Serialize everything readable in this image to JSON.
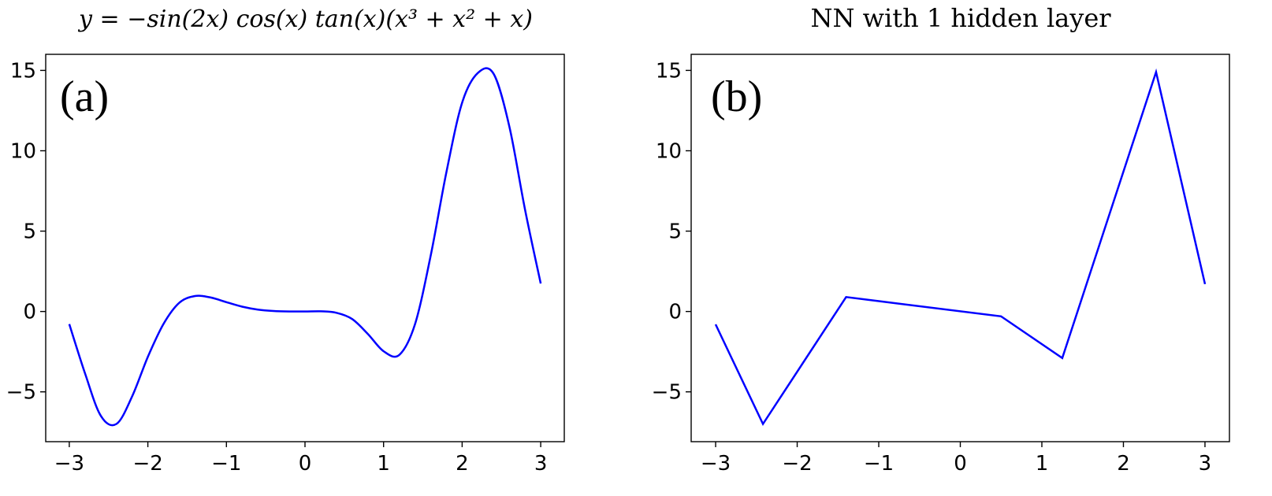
{
  "chart_data": [
    {
      "type": "line",
      "title": "y = −sin(2x) cos(x) tan(x)(x³ + x² + x)",
      "panel_label": "(a)",
      "xlim": [
        -3.3,
        3.3
      ],
      "ylim": [
        -8.1,
        16.0
      ],
      "xticks": [
        -3,
        -2,
        -1,
        0,
        1,
        2,
        3
      ],
      "xtick_labels": [
        "−3",
        "−2",
        "−1",
        "0",
        "1",
        "2",
        "3"
      ],
      "yticks": [
        -5,
        0,
        5,
        10,
        15
      ],
      "ytick_labels": [
        "−5",
        "0",
        "5",
        "10",
        "15"
      ],
      "grid": false,
      "series": [
        {
          "color": "#0000ff",
          "x": [
            -3.0,
            -2.8,
            -2.6,
            -2.4,
            -2.2,
            -2.0,
            -1.8,
            -1.6,
            -1.4,
            -1.2,
            -1.0,
            -0.8,
            -0.6,
            -0.4,
            -0.2,
            0.0,
            0.2,
            0.4,
            0.6,
            0.8,
            1.0,
            1.2,
            1.4,
            1.6,
            1.8,
            2.0,
            2.2,
            2.4,
            2.6,
            2.8,
            3.0
          ],
          "y": [
            -0.78,
            -3.84,
            -6.48,
            -7.0,
            -5.28,
            -2.82,
            -0.77,
            0.54,
            0.96,
            0.87,
            0.58,
            0.3,
            0.12,
            0.03,
            0.0,
            0.0,
            0.01,
            -0.08,
            -0.47,
            -1.4,
            -2.47,
            -2.7,
            -0.79,
            3.48,
            8.68,
            12.99,
            14.84,
            14.79,
            11.53,
            6.34,
            1.74
          ]
        }
      ]
    },
    {
      "type": "line",
      "title": "NN with 1 hidden layer",
      "panel_label": "(b)",
      "xlim": [
        -3.3,
        3.3
      ],
      "ylim": [
        -8.1,
        16.0
      ],
      "xticks": [
        -3,
        -2,
        -1,
        0,
        1,
        2,
        3
      ],
      "xtick_labels": [
        "−3",
        "−2",
        "−1",
        "0",
        "1",
        "2",
        "3"
      ],
      "yticks": [
        -5,
        0,
        5,
        10,
        15
      ],
      "ytick_labels": [
        "−5",
        "0",
        "5",
        "10",
        "15"
      ],
      "grid": false,
      "series": [
        {
          "color": "#0000ff",
          "x": [
            -3.0,
            -2.42,
            -1.4,
            0.5,
            1.25,
            2.4,
            3.0
          ],
          "y": [
            -0.8,
            -7.0,
            0.9,
            -0.3,
            -2.9,
            14.9,
            1.7
          ]
        }
      ]
    }
  ]
}
